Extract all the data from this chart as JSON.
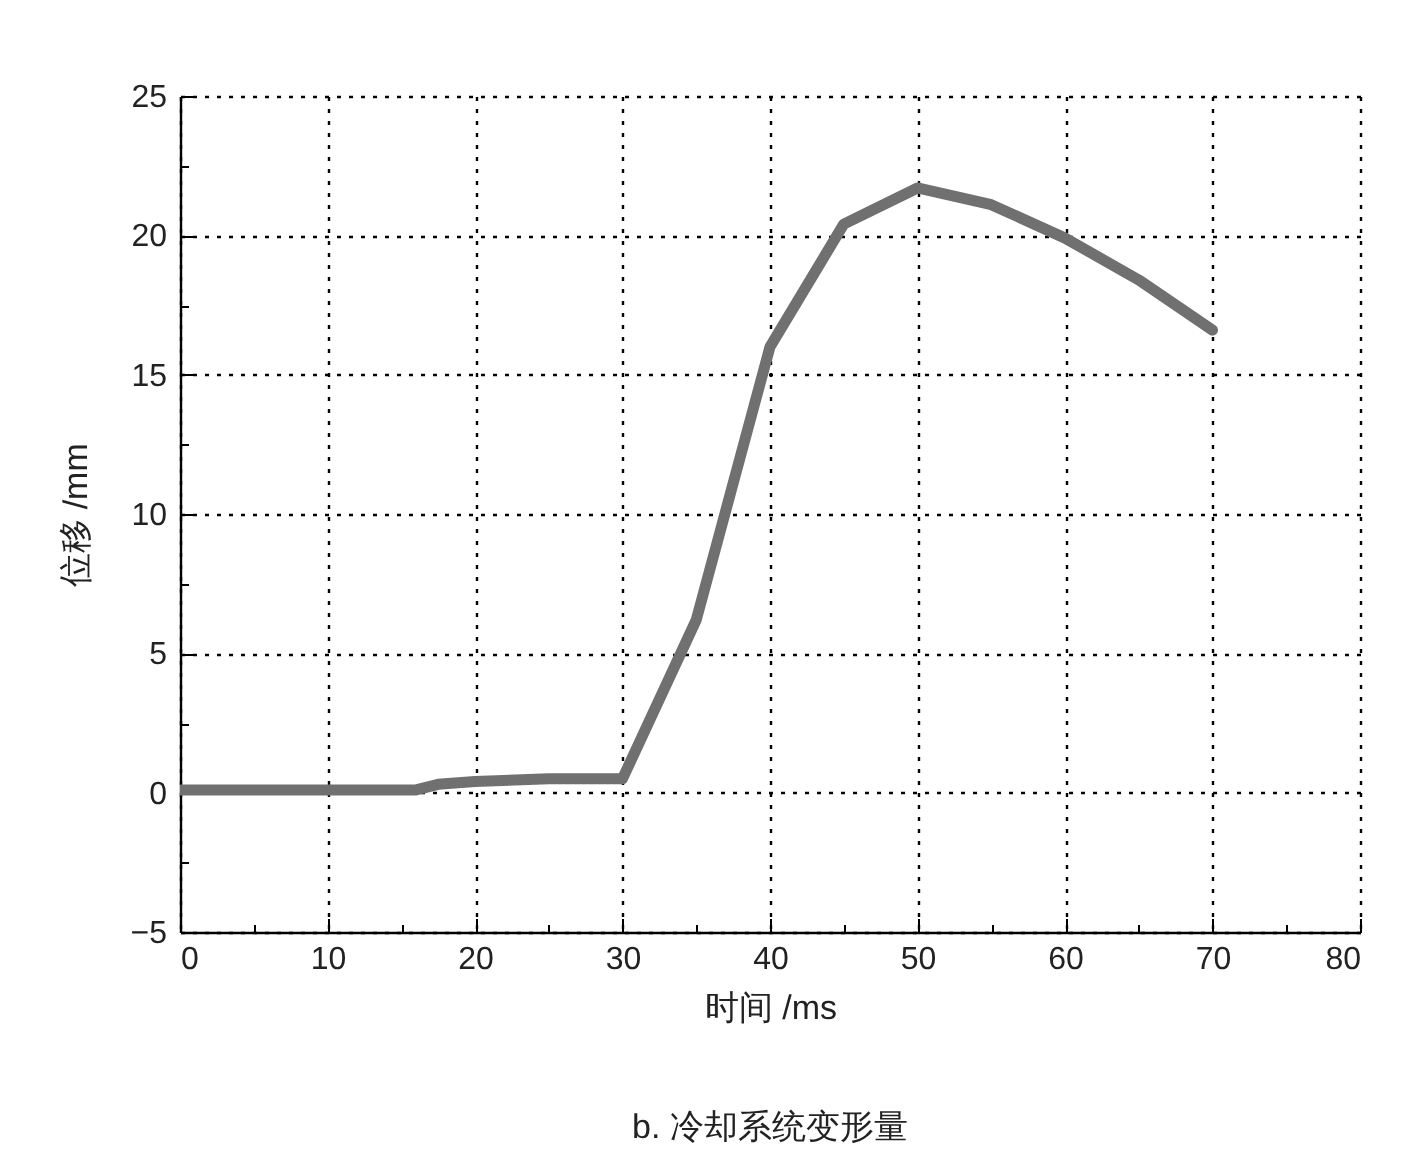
{
  "chart_data": {
    "type": "line",
    "title": "b. 冷却系统变形量",
    "xlabel": "时间 /ms",
    "ylabel": "位移 /mm",
    "x": [
      0,
      10,
      16,
      17.5,
      20,
      25,
      30,
      35,
      40,
      45,
      50,
      55,
      60,
      65,
      70
    ],
    "series": [
      {
        "color": "#707070",
        "values": [
          0.1,
          0.1,
          0.1,
          0.3,
          0.4,
          0.5,
          0.5,
          6.2,
          16,
          20.4,
          21.7,
          21.1,
          19.9,
          18.4,
          16.6
        ]
      }
    ],
    "xlim": [
      0,
      80
    ],
    "ylim": [
      -5,
      25
    ],
    "xticks": [
      0,
      {
        "value": 5,
        "label": null
      },
      10,
      {
        "value": 15,
        "label": null
      },
      20,
      {
        "value": 25,
        "label": null
      },
      30,
      {
        "value": 35,
        "label": null
      },
      40,
      {
        "value": 45,
        "label": null
      },
      50,
      {
        "value": 55,
        "label": null
      },
      60,
      {
        "value": 65,
        "label": null
      },
      70,
      {
        "value": 75,
        "label": null
      },
      80
    ],
    "yticks": [
      {
        "value": -5,
        "label": "−5"
      },
      {
        "value": -2.5,
        "label": null
      },
      0,
      {
        "value": 2.5,
        "label": null
      },
      5,
      {
        "value": 7.5,
        "label": null
      },
      10,
      {
        "value": 12.5,
        "label": null
      },
      15,
      {
        "value": 17.5,
        "label": null
      },
      20,
      {
        "value": 22.5,
        "label": null
      },
      25
    ],
    "grid": true,
    "line_style": "solid"
  }
}
